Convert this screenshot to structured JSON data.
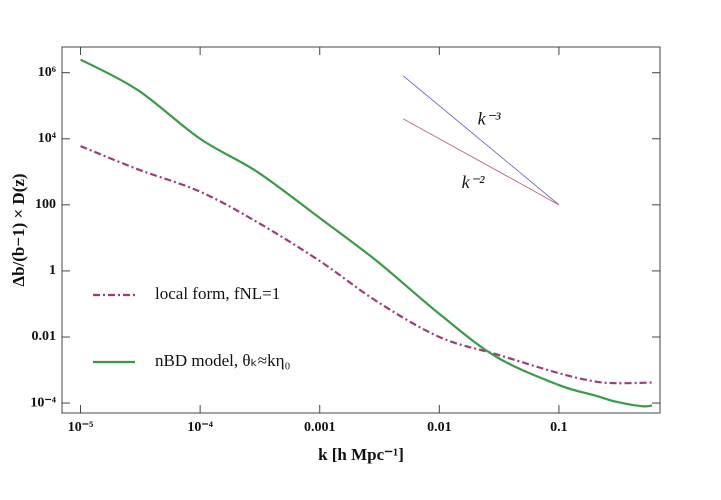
{
  "chart_data": {
    "type": "line",
    "x_label": "k [h Mpc⁻¹]",
    "y_label": "Δb/(b−1) × D(z)",
    "log_x": true,
    "log_y": true,
    "xlim": [
      7e-06,
      0.7
    ],
    "ylim": [
      5e-05,
      6000000.0
    ],
    "xticks": [
      {
        "value": 1e-05,
        "label": "10⁻⁵"
      },
      {
        "value": 0.0001,
        "label": "10⁻⁴"
      },
      0.001,
      0.01,
      0.1
    ],
    "yticks": [
      {
        "value": 0.0001,
        "label": "10⁻⁴"
      },
      0.01,
      1,
      100,
      {
        "value": 10000,
        "label": "10⁴"
      },
      {
        "value": 1000000,
        "label": "10⁶"
      }
    ],
    "legend_position": "lower left",
    "series": [
      {
        "name": "local form, fNL=1",
        "color": "#9b3d7a",
        "dash": "dashdot",
        "legend": true,
        "x": [
          1e-05,
          3e-05,
          0.0001,
          0.0003,
          0.001,
          0.003,
          0.01,
          0.03,
          0.1,
          0.2,
          0.3,
          0.5,
          0.6
        ],
        "values": [
          6000,
          1200,
          250,
          30,
          2,
          0.12,
          0.01,
          0.003,
          0.0008,
          0.00045,
          0.0004,
          0.00041,
          0.00042
        ]
      },
      {
        "name": "nBD model, θₖ≈kη₀",
        "color": "#3a9a47",
        "dash": "solid",
        "legend": true,
        "x": [
          1e-05,
          3e-05,
          0.0001,
          0.0003,
          0.001,
          0.003,
          0.01,
          0.03,
          0.1,
          0.2,
          0.3,
          0.5,
          0.6
        ],
        "values": [
          2500000,
          300000,
          10000,
          1000,
          40,
          2,
          0.05,
          0.0025,
          0.00035,
          0.00017,
          0.00011,
          8e-05,
          8.5e-05
        ]
      },
      {
        "name": "k⁻³",
        "color": "#5a5ab8",
        "dash": "thin",
        "legend": false,
        "x": [
          0.005,
          0.1
        ],
        "values": [
          800000,
          100
        ]
      },
      {
        "name": "k⁻²",
        "color": "#b05a7a",
        "dash": "thin",
        "legend": false,
        "x": [
          0.005,
          0.1
        ],
        "values": [
          40000,
          100
        ]
      }
    ]
  }
}
